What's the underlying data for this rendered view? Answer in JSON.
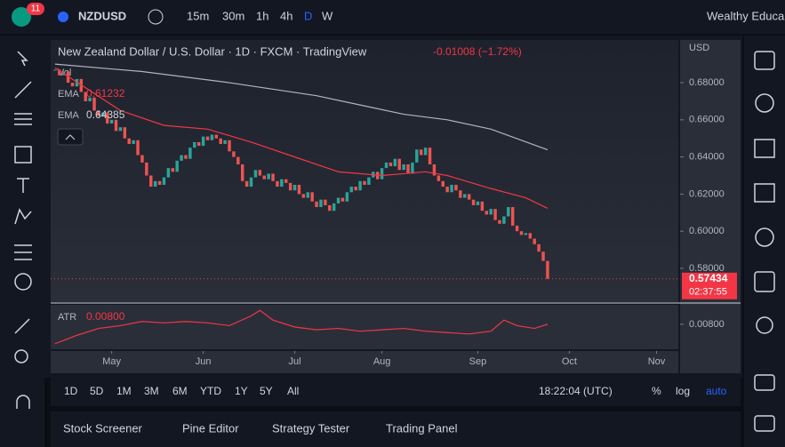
{
  "ui": {
    "badge": "11",
    "symbol": "NZDUSD",
    "intervals": [
      "15m",
      "30m",
      "1h",
      "4h",
      "D",
      "W"
    ],
    "account": "Wealthy Educa",
    "header": "New Zealand Dollar / U.S. Dollar · 1D · FXCM · TradingView",
    "change": "-0.01008 (−1.72%)",
    "vol": "Vol",
    "currency": "USD",
    "countdown": "02:37:55",
    "ranges": [
      "1D",
      "5D",
      "1M",
      "3M",
      "6M",
      "YTD",
      "1Y",
      "5Y",
      "All"
    ],
    "clock": "18:22:04 (UTC)",
    "scale_opts": [
      "%",
      "log",
      "auto"
    ],
    "tabs": [
      "Stock Screener",
      "Pine Editor",
      "Strategy Tester",
      "Trading Panel"
    ]
  },
  "chart_data": {
    "type": "candlestick",
    "up_color": "#26a69a",
    "down_color": "#ef5350",
    "xlim": [
      -1,
      143
    ],
    "ylim": [
      0.5618,
      0.703
    ],
    "xticks": [
      {
        "value": 13,
        "label": "May"
      },
      {
        "value": 34,
        "label": "Jun"
      },
      {
        "value": 55,
        "label": "Jul"
      },
      {
        "value": 75,
        "label": "Aug"
      },
      {
        "value": 97,
        "label": "Sep"
      },
      {
        "value": 118,
        "label": "Oct"
      },
      {
        "value": 138,
        "label": "Nov"
      }
    ],
    "yticks": [
      {
        "value": 0.58,
        "label": "0.58000"
      },
      {
        "value": 0.6,
        "label": "0.60000"
      },
      {
        "value": 0.62,
        "label": "0.62000"
      },
      {
        "value": 0.64,
        "label": "0.64000"
      },
      {
        "value": 0.66,
        "label": "0.66000"
      },
      {
        "value": 0.68,
        "label": "0.68000"
      }
    ],
    "closes": [
      0.687,
      0.684,
      0.686,
      0.68,
      0.678,
      0.682,
      0.675,
      0.67,
      0.672,
      0.665,
      0.662,
      0.664,
      0.658,
      0.66,
      0.654,
      0.656,
      0.65,
      0.647,
      0.649,
      0.641,
      0.637,
      0.63,
      0.624,
      0.627,
      0.625,
      0.629,
      0.634,
      0.632,
      0.638,
      0.641,
      0.639,
      0.645,
      0.648,
      0.646,
      0.651,
      0.649,
      0.652,
      0.65,
      0.647,
      0.649,
      0.643,
      0.64,
      0.636,
      0.627,
      0.624,
      0.629,
      0.633,
      0.63,
      0.628,
      0.631,
      0.627,
      0.624,
      0.628,
      0.626,
      0.622,
      0.625,
      0.62,
      0.618,
      0.621,
      0.616,
      0.613,
      0.617,
      0.614,
      0.611,
      0.615,
      0.618,
      0.616,
      0.621,
      0.624,
      0.622,
      0.627,
      0.625,
      0.629,
      0.632,
      0.628,
      0.634,
      0.637,
      0.635,
      0.639,
      0.633,
      0.636,
      0.631,
      0.637,
      0.644,
      0.641,
      0.645,
      0.636,
      0.63,
      0.627,
      0.624,
      0.621,
      0.625,
      0.622,
      0.618,
      0.62,
      0.617,
      0.614,
      0.616,
      0.611,
      0.609,
      0.612,
      0.606,
      0.604,
      0.608,
      0.613,
      0.603,
      0.6,
      0.598,
      0.599,
      0.596,
      0.593,
      0.589,
      0.584,
      0.57434
    ],
    "series": [
      {
        "name": "EMA",
        "color": "#f23645",
        "x": [
          0,
          15,
          25,
          35,
          45,
          55,
          65,
          75,
          80,
          85,
          90,
          100,
          108,
          113
        ],
        "values": [
          0.688,
          0.665,
          0.657,
          0.655,
          0.648,
          0.64,
          0.632,
          0.63,
          0.631,
          0.632,
          0.63,
          0.623,
          0.618,
          0.61232
        ]
      },
      {
        "name": "EMA",
        "color": "#b2b5be",
        "x": [
          0,
          20,
          40,
          60,
          70,
          80,
          90,
          100,
          113
        ],
        "values": [
          0.69,
          0.686,
          0.68,
          0.673,
          0.668,
          0.663,
          0.66,
          0.655,
          0.64385
        ]
      }
    ],
    "atr": {
      "name": "ATR",
      "legend_value": "0.00800",
      "color": "#f23645",
      "ylim": [
        0.0062,
        0.0094
      ],
      "yticks": [
        {
          "value": 0.008,
          "label": "0.00800"
        }
      ],
      "x": [
        0,
        5,
        10,
        15,
        20,
        25,
        30,
        35,
        40,
        45,
        47,
        50,
        55,
        60,
        65,
        70,
        75,
        80,
        85,
        90,
        95,
        100,
        103,
        106,
        110,
        113
      ],
      "values": [
        0.0066,
        0.0072,
        0.0077,
        0.0079,
        0.0082,
        0.0081,
        0.0082,
        0.0081,
        0.0079,
        0.0086,
        0.009,
        0.0083,
        0.0078,
        0.0076,
        0.0077,
        0.0075,
        0.0076,
        0.0077,
        0.0075,
        0.0074,
        0.0073,
        0.0075,
        0.0083,
        0.0079,
        0.0077,
        0.008
      ]
    }
  }
}
